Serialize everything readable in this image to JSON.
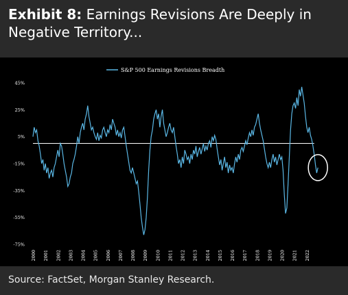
{
  "title": {
    "lead": "Exhibit 8:",
    "text": " Earnings Revisions Are Deeply in Negative Territory..."
  },
  "source": "Source: FactSet, Morgan Stanley Research.",
  "colors": {
    "line": "#5bb8e6",
    "zero_line": "#ffffff",
    "circle": "#ffffff",
    "panel": "#000000"
  },
  "chart_data": {
    "type": "line",
    "x": [
      "2000",
      "2001",
      "2002",
      "2003",
      "2004",
      "2005",
      "2006",
      "2007",
      "2008",
      "2009",
      "2010",
      "2011",
      "2012",
      "2013",
      "2014",
      "2015",
      "2016",
      "2017",
      "2018",
      "2019",
      "2020",
      "2021",
      "2022"
    ],
    "ylim": [
      -75,
      45
    ],
    "yticks": [
      45,
      25,
      5,
      -15,
      -35,
      -55,
      -75
    ],
    "ytick_labels": [
      "45%",
      "25%",
      "5%",
      "-15%",
      "-35%",
      "-55%",
      "-75%"
    ],
    "reference_line": 0,
    "legend": "S&P 500 Earnings Revisions Breadth",
    "legend_position": "top-center",
    "series": [
      {
        "name": "S&P 500 Earnings Revisions Breadth",
        "points": [
          [
            2000.0,
            5
          ],
          [
            2000.1,
            12
          ],
          [
            2000.2,
            8
          ],
          [
            2000.3,
            10
          ],
          [
            2000.4,
            2
          ],
          [
            2000.5,
            -2
          ],
          [
            2000.6,
            -8
          ],
          [
            2000.7,
            -15
          ],
          [
            2000.8,
            -12
          ],
          [
            2000.9,
            -20
          ],
          [
            2001.0,
            -15
          ],
          [
            2001.1,
            -22
          ],
          [
            2001.2,
            -18
          ],
          [
            2001.3,
            -26
          ],
          [
            2001.4,
            -22
          ],
          [
            2001.5,
            -20
          ],
          [
            2001.6,
            -25
          ],
          [
            2001.7,
            -18
          ],
          [
            2001.8,
            -15
          ],
          [
            2001.9,
            -10
          ],
          [
            2002.0,
            -5
          ],
          [
            2002.1,
            -10
          ],
          [
            2002.2,
            0
          ],
          [
            2002.3,
            -2
          ],
          [
            2002.4,
            -8
          ],
          [
            2002.5,
            -15
          ],
          [
            2002.6,
            -20
          ],
          [
            2002.7,
            -25
          ],
          [
            2002.8,
            -32
          ],
          [
            2002.9,
            -30
          ],
          [
            2003.0,
            -25
          ],
          [
            2003.1,
            -22
          ],
          [
            2003.2,
            -15
          ],
          [
            2003.3,
            -12
          ],
          [
            2003.4,
            -8
          ],
          [
            2003.5,
            -2
          ],
          [
            2003.6,
            5
          ],
          [
            2003.7,
            0
          ],
          [
            2003.8,
            8
          ],
          [
            2003.9,
            12
          ],
          [
            2004.0,
            15
          ],
          [
            2004.1,
            10
          ],
          [
            2004.2,
            18
          ],
          [
            2004.3,
            22
          ],
          [
            2004.4,
            28
          ],
          [
            2004.5,
            20
          ],
          [
            2004.6,
            15
          ],
          [
            2004.7,
            10
          ],
          [
            2004.8,
            12
          ],
          [
            2004.9,
            8
          ],
          [
            2005.0,
            5
          ],
          [
            2005.1,
            3
          ],
          [
            2005.2,
            8
          ],
          [
            2005.3,
            2
          ],
          [
            2005.4,
            6
          ],
          [
            2005.5,
            4
          ],
          [
            2005.6,
            10
          ],
          [
            2005.7,
            12
          ],
          [
            2005.8,
            8
          ],
          [
            2005.9,
            5
          ],
          [
            2006.0,
            10
          ],
          [
            2006.1,
            8
          ],
          [
            2006.2,
            14
          ],
          [
            2006.3,
            10
          ],
          [
            2006.4,
            18
          ],
          [
            2006.5,
            15
          ],
          [
            2006.6,
            12
          ],
          [
            2006.7,
            6
          ],
          [
            2006.8,
            10
          ],
          [
            2006.9,
            5
          ],
          [
            2007.0,
            8
          ],
          [
            2007.1,
            4
          ],
          [
            2007.2,
            10
          ],
          [
            2007.3,
            12
          ],
          [
            2007.4,
            5
          ],
          [
            2007.5,
            -2
          ],
          [
            2007.6,
            -8
          ],
          [
            2007.7,
            -14
          ],
          [
            2007.8,
            -20
          ],
          [
            2007.9,
            -22
          ],
          [
            2008.0,
            -18
          ],
          [
            2008.1,
            -22
          ],
          [
            2008.2,
            -26
          ],
          [
            2008.3,
            -30
          ],
          [
            2008.4,
            -28
          ],
          [
            2008.5,
            -36
          ],
          [
            2008.6,
            -45
          ],
          [
            2008.7,
            -55
          ],
          [
            2008.8,
            -62
          ],
          [
            2008.9,
            -68
          ],
          [
            2009.0,
            -64
          ],
          [
            2009.1,
            -55
          ],
          [
            2009.2,
            -40
          ],
          [
            2009.3,
            -20
          ],
          [
            2009.4,
            -5
          ],
          [
            2009.5,
            5
          ],
          [
            2009.6,
            10
          ],
          [
            2009.7,
            18
          ],
          [
            2009.8,
            22
          ],
          [
            2009.9,
            25
          ],
          [
            2010.0,
            18
          ],
          [
            2010.1,
            22
          ],
          [
            2010.2,
            12
          ],
          [
            2010.3,
            20
          ],
          [
            2010.4,
            25
          ],
          [
            2010.5,
            15
          ],
          [
            2010.6,
            10
          ],
          [
            2010.7,
            5
          ],
          [
            2010.8,
            8
          ],
          [
            2010.9,
            12
          ],
          [
            2011.0,
            15
          ],
          [
            2011.1,
            10
          ],
          [
            2011.2,
            8
          ],
          [
            2011.3,
            12
          ],
          [
            2011.4,
            5
          ],
          [
            2011.5,
            -2
          ],
          [
            2011.6,
            -8
          ],
          [
            2011.7,
            -15
          ],
          [
            2011.8,
            -12
          ],
          [
            2011.9,
            -18
          ],
          [
            2012.0,
            -10
          ],
          [
            2012.1,
            -15
          ],
          [
            2012.2,
            -5
          ],
          [
            2012.3,
            -8
          ],
          [
            2012.4,
            -12
          ],
          [
            2012.5,
            -10
          ],
          [
            2012.6,
            -15
          ],
          [
            2012.7,
            -8
          ],
          [
            2012.8,
            -12
          ],
          [
            2012.9,
            -5
          ],
          [
            2013.0,
            -8
          ],
          [
            2013.1,
            -2
          ],
          [
            2013.2,
            -10
          ],
          [
            2013.3,
            -6
          ],
          [
            2013.4,
            -3
          ],
          [
            2013.5,
            -8
          ],
          [
            2013.6,
            -4
          ],
          [
            2013.7,
            0
          ],
          [
            2013.8,
            -6
          ],
          [
            2013.9,
            -2
          ],
          [
            2014.0,
            -5
          ],
          [
            2014.1,
            0
          ],
          [
            2014.2,
            2
          ],
          [
            2014.3,
            -3
          ],
          [
            2014.4,
            5
          ],
          [
            2014.5,
            2
          ],
          [
            2014.6,
            6
          ],
          [
            2014.7,
            3
          ],
          [
            2014.8,
            -4
          ],
          [
            2014.9,
            -10
          ],
          [
            2015.0,
            -16
          ],
          [
            2015.1,
            -12
          ],
          [
            2015.2,
            -20
          ],
          [
            2015.3,
            -15
          ],
          [
            2015.4,
            -10
          ],
          [
            2015.5,
            -18
          ],
          [
            2015.6,
            -14
          ],
          [
            2015.7,
            -22
          ],
          [
            2015.8,
            -16
          ],
          [
            2015.9,
            -20
          ],
          [
            2016.0,
            -18
          ],
          [
            2016.1,
            -22
          ],
          [
            2016.2,
            -15
          ],
          [
            2016.3,
            -10
          ],
          [
            2016.4,
            -14
          ],
          [
            2016.5,
            -8
          ],
          [
            2016.6,
            -12
          ],
          [
            2016.7,
            -5
          ],
          [
            2016.8,
            -3
          ],
          [
            2016.9,
            -6
          ],
          [
            2017.0,
            -2
          ],
          [
            2017.1,
            2
          ],
          [
            2017.2,
            -1
          ],
          [
            2017.3,
            4
          ],
          [
            2017.4,
            8
          ],
          [
            2017.5,
            5
          ],
          [
            2017.6,
            10
          ],
          [
            2017.7,
            6
          ],
          [
            2017.8,
            12
          ],
          [
            2017.9,
            14
          ],
          [
            2018.0,
            18
          ],
          [
            2018.1,
            22
          ],
          [
            2018.2,
            15
          ],
          [
            2018.3,
            10
          ],
          [
            2018.4,
            6
          ],
          [
            2018.5,
            2
          ],
          [
            2018.6,
            -4
          ],
          [
            2018.7,
            -10
          ],
          [
            2018.8,
            -15
          ],
          [
            2018.9,
            -18
          ],
          [
            2019.0,
            -14
          ],
          [
            2019.1,
            -18
          ],
          [
            2019.2,
            -12
          ],
          [
            2019.3,
            -8
          ],
          [
            2019.4,
            -14
          ],
          [
            2019.5,
            -10
          ],
          [
            2019.6,
            -16
          ],
          [
            2019.7,
            -12
          ],
          [
            2019.8,
            -8
          ],
          [
            2019.9,
            -12
          ],
          [
            2020.0,
            -10
          ],
          [
            2020.1,
            -20
          ],
          [
            2020.2,
            -38
          ],
          [
            2020.3,
            -52
          ],
          [
            2020.4,
            -48
          ],
          [
            2020.5,
            -30
          ],
          [
            2020.6,
            -10
          ],
          [
            2020.7,
            10
          ],
          [
            2020.8,
            22
          ],
          [
            2020.9,
            28
          ],
          [
            2021.0,
            30
          ],
          [
            2021.1,
            26
          ],
          [
            2021.2,
            34
          ],
          [
            2021.3,
            28
          ],
          [
            2021.4,
            40
          ],
          [
            2021.5,
            35
          ],
          [
            2021.6,
            42
          ],
          [
            2021.7,
            36
          ],
          [
            2021.8,
            30
          ],
          [
            2021.9,
            20
          ],
          [
            2022.0,
            12
          ],
          [
            2022.1,
            8
          ],
          [
            2022.2,
            12
          ],
          [
            2022.3,
            6
          ],
          [
            2022.4,
            3
          ],
          [
            2022.5,
            -2
          ],
          [
            2022.6,
            -8
          ],
          [
            2022.7,
            -16
          ],
          [
            2022.8,
            -22
          ],
          [
            2022.9,
            -18
          ]
        ]
      }
    ],
    "annotation": {
      "shape": "circle",
      "x": 2022.9,
      "y": -18
    }
  }
}
